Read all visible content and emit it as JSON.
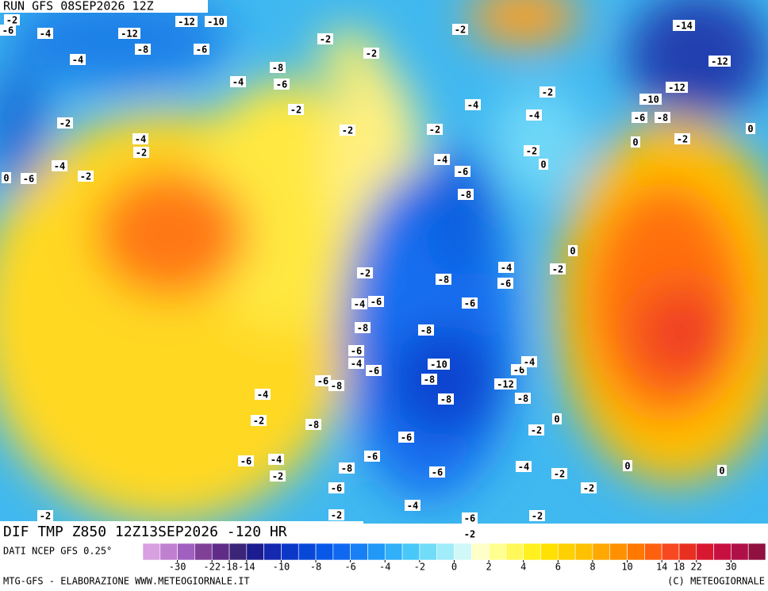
{
  "header": {
    "run": "RUN GFS 08SEP2026 12Z"
  },
  "title": "DIF TMP Z850 12Z13SEP2026 -120 HR",
  "source": "DATI NCEP GFS 0.25°",
  "credit_left": "MTG-GFS - ELABORAZIONE WWW.METEOGIORNALE.IT",
  "credit_right": "(C) METEOGIORNALE",
  "colorbar": {
    "levels": [
      -38,
      -34,
      -30,
      -26,
      -22,
      -18,
      -14,
      -12,
      -10,
      -9,
      -8,
      -7,
      -6,
      -5,
      -4,
      -3,
      -2,
      -1,
      0,
      1,
      2,
      3,
      4,
      5,
      6,
      7,
      8,
      9,
      10,
      12,
      14,
      18,
      22,
      26,
      30,
      34,
      38
    ],
    "colors": [
      "#d8a0e0",
      "#c080d0",
      "#a060c0",
      "#804098",
      "#602c88",
      "#3c2478",
      "#1c1c90",
      "#1428b0",
      "#0c38c8",
      "#0848d8",
      "#0858e8",
      "#1068f0",
      "#1880f4",
      "#2098f8",
      "#30b0f8",
      "#48c8f8",
      "#70dcf8",
      "#a0ecf8",
      "#d0f8f8",
      "#ffffc8",
      "#ffff90",
      "#fff858",
      "#fff020",
      "#ffe000",
      "#ffd000",
      "#ffc000",
      "#ffa800",
      "#ff9000",
      "#ff7800",
      "#ff6010",
      "#f84820",
      "#e83020",
      "#d81830",
      "#c81040",
      "#b01048",
      "#901040"
    ],
    "ticks": [
      -30,
      -22,
      -18,
      -14,
      -10,
      -8,
      -6,
      -4,
      -2,
      0,
      2,
      4,
      6,
      8,
      10,
      14,
      18,
      22,
      30
    ]
  },
  "contour_labels": [
    -2,
    -6,
    -4,
    -12,
    -12,
    -10,
    -8,
    -6,
    -4,
    -2,
    -2,
    -2,
    -14,
    -12,
    -8,
    -4,
    -6,
    -12,
    -10,
    -2,
    -2,
    -4,
    -2,
    -4,
    -6,
    -8,
    -2,
    -2,
    -4,
    -2,
    0,
    -2,
    0,
    -2,
    0,
    -4,
    -6,
    -4,
    -2,
    0,
    -6,
    -8,
    0,
    -4,
    -2,
    -6,
    -2,
    -8,
    -4,
    -6,
    -6,
    -8,
    -8,
    -6,
    -4,
    -6,
    -10,
    -6,
    -4,
    -8,
    -6,
    -8,
    -12,
    -8,
    -4,
    -8,
    -2,
    -8,
    0,
    -2,
    -6,
    -6,
    -4,
    -6,
    -8,
    0,
    -4,
    -2,
    -6,
    -2,
    0,
    -6,
    -2,
    -4,
    -2,
    -2,
    -6,
    -2,
    -2
  ]
}
